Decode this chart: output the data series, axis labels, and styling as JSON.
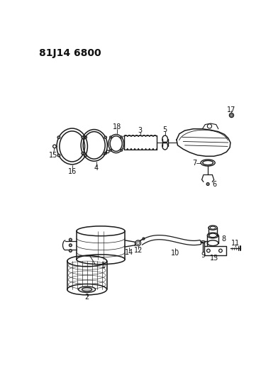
{
  "title": "81J14 6800",
  "bg_color": "#ffffff",
  "line_color": "#1a1a1a",
  "label_color": "#111111",
  "title_fontsize": 10,
  "label_fontsize": 7
}
